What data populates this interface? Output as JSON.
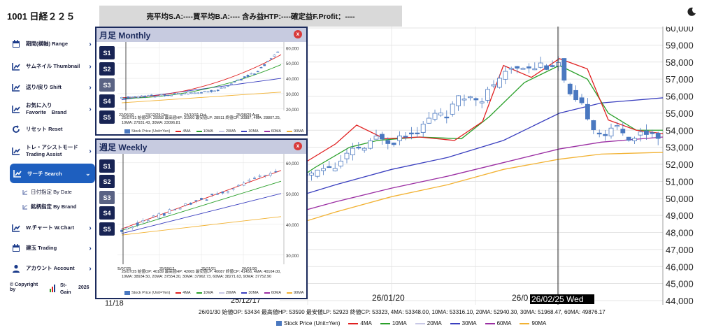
{
  "brand": {
    "title": "1001 日経２２５"
  },
  "status_bar": {
    "text": "売平均S.A:----買平均B.A:---- 含み益HTP:----確定益F.Profit：----"
  },
  "sidebar": {
    "items": [
      {
        "label": "期間(横軸) Range",
        "icon": "calendar-icon"
      },
      {
        "label": "サムネイル Thumbnail",
        "icon": "chart-icon"
      },
      {
        "label": "送り/戻り Shift",
        "icon": "chart-icon"
      },
      {
        "label": "お気に入り\nFavorite　Brand",
        "icon": "chart-icon"
      },
      {
        "label": "リセット Reset",
        "icon": "reset-icon"
      },
      {
        "label": "トレ・アシストモード\nTrading Assist",
        "icon": "chart-icon"
      },
      {
        "label": "サーチ Search",
        "icon": "search-icon"
      },
      {
        "label": "W.チャート W.Chart",
        "icon": "chart-icon"
      },
      {
        "label": "建玉 Trading",
        "icon": "calendar-icon"
      },
      {
        "label": "アカウント Account",
        "icon": "user-icon"
      }
    ],
    "sub_items": [
      {
        "label": "日付指定 By Date"
      },
      {
        "label": "銘柄指定 By Brand"
      }
    ],
    "copyright": {
      "line1": "© Copyright",
      "line2": "by",
      "brand": "St-Gain",
      "year": "2026"
    }
  },
  "main_chart": {
    "y_ticks": [
      "60,000",
      "59,000",
      "58,000",
      "57,000",
      "56,000",
      "55,000",
      "54,000",
      "53,000",
      "52,000",
      "51,000",
      "50,000",
      "49,000",
      "48,000",
      "47,000",
      "46,000",
      "45,000",
      "44,000"
    ],
    "x_labels": [
      "26/01/20",
      "26/0"
    ],
    "x_label_partial_left": "11/18",
    "x_label_partial_mid": "25/12/17",
    "cursor_label": "26/02/25 Wed",
    "info": "26/01/30 始値OP: 53434 最高値HP: 53590 最安値LP: 52923 終値CP: 53323, 4MA: 53348.00, 10MA: 53316.10, 20MA: 52940.30, 30MA: 51968.47, 60MA: 49876.17",
    "legend": [
      "Stock Price (Unit=Yen)",
      "4MA",
      "10MA",
      "20MA",
      "30MA",
      "60MA",
      "90MA"
    ]
  },
  "monthly": {
    "title": "月足 Monthly",
    "buttons": [
      "S1",
      "S2",
      "S3",
      "S4",
      "S5"
    ],
    "y_ticks": [
      "60,000",
      "50,000",
      "40,000",
      "30,000",
      "20,000"
    ],
    "x_labels": [
      "22/06/30",
      "23/12/29 Dec",
      "24/10/31 Oct",
      "25/08/29 Aug"
    ],
    "info": "25/07/31 始値OP: 29958 最高値HP: 31560 最安値LP: 28911 終値CP: 30887, 4MA: 28807.25, 10MA: 27931.43, 30MA: 23096.81",
    "legend": [
      "Stock Price (Unit=Yen)",
      "4MA",
      "10MA",
      "20MA",
      "30MA",
      "60MA",
      "90MA"
    ]
  },
  "weekly": {
    "title": "週足 Weekly",
    "buttons": [
      "S1",
      "S2",
      "S3",
      "S4",
      "S5"
    ],
    "y_ticks": [
      "60,000",
      "50,000",
      "40,000",
      "30,000"
    ],
    "x_labels": [
      "25/07/25",
      "25/09/12",
      "25/11/21",
      "26/01/30"
    ],
    "x_label_left": "27/04",
    "info": "25/07/25 始値OP: 40189 最高値HP: 42065 最安値LP: 40087 終値CP: 41456, 4MA: 40164.00, 10MA: 38934.50, 20MA: 37554.30, 30MA: 37962.73, 60MA: 38271.63, 90MA: 37752.90",
    "legend": [
      "Stock Price (Unit=Yen)",
      "4MA",
      "10MA",
      "20MA",
      "30MA",
      "60MA",
      "90MA"
    ]
  },
  "colors": {
    "ma4": "#e02020",
    "ma10": "#2aa02a",
    "ma20": "#c8c8e6",
    "ma30": "#3a3fbf",
    "ma60": "#9b2fa3",
    "ma90": "#f2b233",
    "candle": "#4a78c0",
    "accent": "#1e5fbf",
    "panel_border": "#1b2a5c"
  }
}
